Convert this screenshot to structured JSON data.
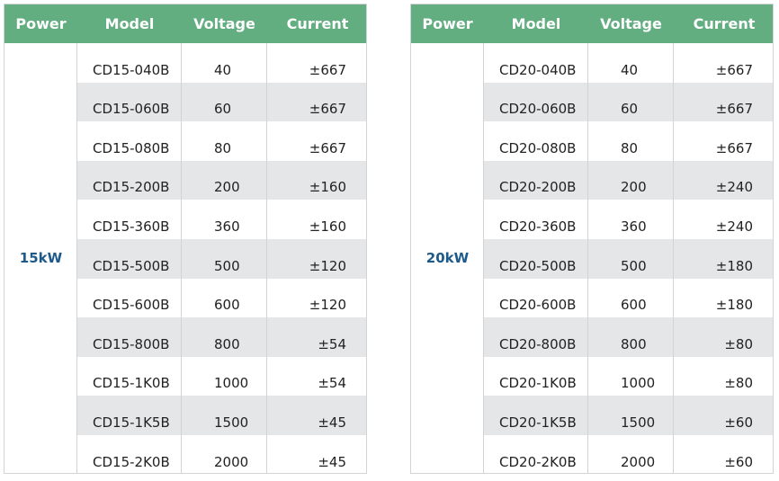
{
  "tables": [
    {
      "headers": [
        "Power",
        "Model",
        "Voltage",
        "Current"
      ],
      "power": "15kW",
      "rows": [
        [
          "CD15-040B",
          "40",
          "±667"
        ],
        [
          "CD15-060B",
          "60",
          "±667"
        ],
        [
          "CD15-080B",
          "80",
          "±667"
        ],
        [
          "CD15-200B",
          "200",
          "±160"
        ],
        [
          "CD15-360B",
          "360",
          "±160"
        ],
        [
          "CD15-500B",
          "500",
          "±120"
        ],
        [
          "CD15-600B",
          "600",
          "±120"
        ],
        [
          "CD15-800B",
          "800",
          "±54"
        ],
        [
          "CD15-1K0B",
          "1000",
          "±54"
        ],
        [
          "CD15-1K5B",
          "1500",
          "±45"
        ],
        [
          "CD15-2K0B",
          "2000",
          "±45"
        ]
      ]
    },
    {
      "headers": [
        "Power",
        "Model",
        "Voltage",
        "Current"
      ],
      "power": "20kW",
      "rows": [
        [
          "CD20-040B",
          "40",
          "±667"
        ],
        [
          "CD20-060B",
          "60",
          "±667"
        ],
        [
          "CD20-080B",
          "80",
          "±667"
        ],
        [
          "CD20-200B",
          "200",
          "±240"
        ],
        [
          "CD20-360B",
          "360",
          "±240"
        ],
        [
          "CD20-500B",
          "500",
          "±180"
        ],
        [
          "CD20-600B",
          "600",
          "±180"
        ],
        [
          "CD20-800B",
          "800",
          "±80"
        ],
        [
          "CD20-1K0B",
          "1000",
          "±80"
        ],
        [
          "CD20-1K5B",
          "1500",
          "±60"
        ],
        [
          "CD20-2K0B",
          "2000",
          "±60"
        ]
      ]
    }
  ]
}
